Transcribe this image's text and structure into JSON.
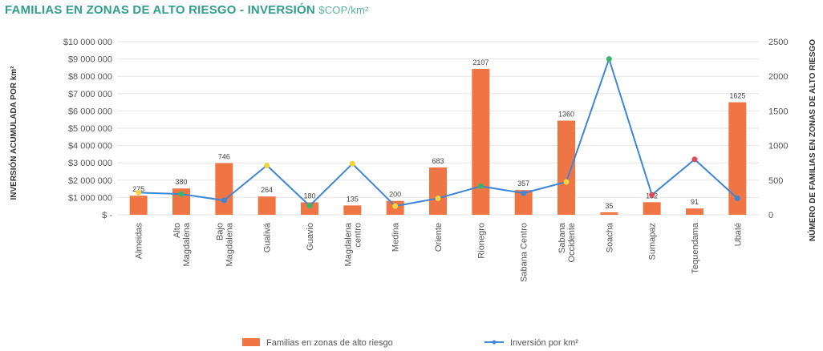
{
  "title": {
    "main": "FAMILIAS EN ZONAS DE ALTO RIESGO - INVERSIÓN",
    "unit": "$COP/km²"
  },
  "colors": {
    "bar": "#f07545",
    "line": "#3f86d4",
    "axis_text": "#555555",
    "grid": "#e6e6e6",
    "marker_green": "#39b56a",
    "marker_yellow": "#f2d43b",
    "marker_red": "#e04a5c"
  },
  "chart_data": {
    "type": "bar",
    "categories": [
      "Almeidas",
      "Alto Magdalena",
      "Bajo Magdalena",
      "Gualivá",
      "Guavio",
      "Magdalena centro",
      "Medina",
      "Oriente",
      "Rionegro",
      "Sabana Centro",
      "Sabana Occidente",
      "Soacha",
      "Sumapaz",
      "Tequendama",
      "Ubaté"
    ],
    "category_lines": [
      [
        "Almeidas"
      ],
      [
        "Alto",
        "Magdalena"
      ],
      [
        "Bajo",
        "Magdalena"
      ],
      [
        "Gualivá"
      ],
      [
        "Guavio"
      ],
      [
        "Magdalena",
        "centro"
      ],
      [
        "Medina"
      ],
      [
        "Oriente"
      ],
      [
        "Rionegro"
      ],
      [
        "Sabana Centro"
      ],
      [
        "Sabana",
        "Occidente"
      ],
      [
        "Soacha"
      ],
      [
        "Sumapaz"
      ],
      [
        "Tequendama"
      ],
      [
        "Ubaté"
      ]
    ],
    "series": [
      {
        "name": "Familias en zonas de alto riesgo",
        "type": "bar",
        "axis": "right",
        "values": [
          275,
          380,
          746,
          264,
          180,
          135,
          200,
          683,
          2107,
          357,
          1360,
          35,
          182,
          91,
          1625
        ],
        "labels": [
          "275",
          "380",
          "746",
          "264",
          "180",
          "135",
          "200",
          "683",
          "2107",
          "357",
          "1360",
          "35",
          "182",
          "91",
          "1625"
        ]
      },
      {
        "name": "Inversión por km²",
        "type": "line",
        "axis": "left",
        "values": [
          1280000,
          1200000,
          830000,
          2850000,
          520000,
          2950000,
          500000,
          950000,
          1650000,
          1250000,
          1900000,
          9000000,
          1150000,
          3200000,
          950000
        ],
        "markers": [
          "yellow",
          "green",
          "blue",
          "yellow",
          "green",
          "yellow",
          "yellow",
          "yellow",
          "green",
          "blue",
          "yellow",
          "green",
          "red",
          "red",
          "blue"
        ]
      }
    ],
    "ylabel": "INVERSIÓN ACUMULADA POR km²",
    "y2label": "NÚMERO DE FAMILIAS EN ZONAS DE ALTO RIESGO",
    "ylim": [
      0,
      10000000
    ],
    "y2lim": [
      0,
      2500
    ],
    "yticks": [
      "$ -",
      "$1 000 000",
      "$2 000 000",
      "$3 000 000",
      "$4 000 000",
      "$5 000 000",
      "$6 000 000",
      "$7 000 000",
      "$8 000 000",
      "$9 000 000",
      "$10 000 000"
    ],
    "y2ticks": [
      "0",
      "500",
      "1000",
      "1500",
      "2000",
      "2500"
    ],
    "grid": true,
    "legend_position": "bottom-center"
  }
}
